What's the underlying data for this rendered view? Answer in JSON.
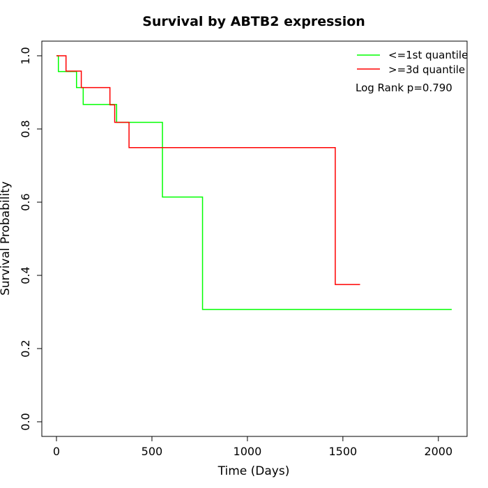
{
  "chart_data": {
    "type": "line",
    "title": "Survival by ABTB2 expression",
    "xlabel": "Time (Days)",
    "ylabel": "Survival Probability",
    "xlim": [
      0,
      2070
    ],
    "ylim": [
      0,
      1.0
    ],
    "x_ticks": [
      0,
      500,
      1000,
      1500,
      2000
    ],
    "y_ticks": [
      0.0,
      0.2,
      0.4,
      0.6,
      0.8,
      1.0
    ],
    "x_tick_labels": [
      "0",
      "500",
      "1000",
      "1500",
      "2000"
    ],
    "y_tick_labels": [
      "0.0",
      "0.2",
      "0.4",
      "0.6",
      "0.8",
      "1.0"
    ],
    "grid": false,
    "legend_position": "top-right",
    "annotation": "Log Rank p=0.790",
    "series": [
      {
        "name": "<=1st quantile",
        "color": "#00ff00",
        "step": true,
        "x": [
          0,
          10,
          105,
          140,
          315,
          555,
          765,
          2070
        ],
        "y": [
          1.0,
          0.957,
          0.913,
          0.867,
          0.818,
          0.614,
          0.307,
          0.307
        ]
      },
      {
        "name": ">=3d quantile",
        "color": "#ff0000",
        "step": true,
        "x": [
          0,
          50,
          130,
          280,
          305,
          380,
          1460,
          1590
        ],
        "y": [
          1.0,
          0.958,
          0.913,
          0.866,
          0.818,
          0.749,
          0.375,
          0.375
        ]
      }
    ]
  }
}
